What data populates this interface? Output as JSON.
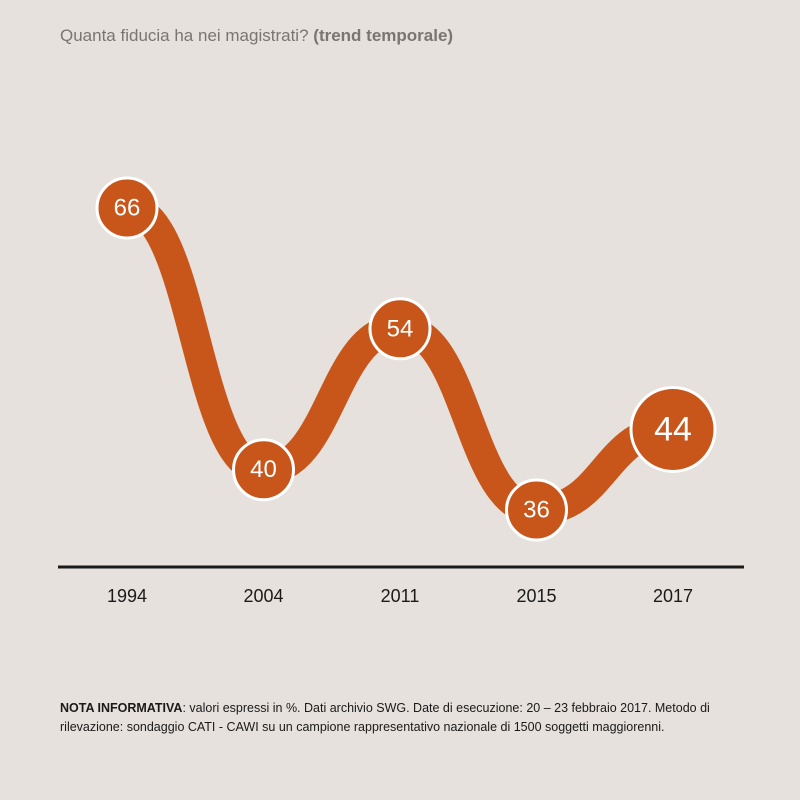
{
  "title": {
    "question": "Quanta fiducia ha nei magistrati?",
    "qualifier": "(trend temporale)"
  },
  "colors": {
    "background": "#e6e1dd",
    "line": "#c8561b",
    "marker_border": "#ffffff",
    "axis": "#1a1a1a",
    "title": "#7a7570"
  },
  "chart_data": {
    "type": "line",
    "title": "Quanta fiducia ha nei magistrati? (trend temporale)",
    "xlabel": "",
    "ylabel": "",
    "grid": false,
    "categories": [
      "1994",
      "2004",
      "2011",
      "2015",
      "2017"
    ],
    "series": [
      {
        "values": [
          66,
          40,
          54,
          36,
          44
        ]
      }
    ],
    "highlight_last": true
  },
  "note": {
    "label": "NOTA INFORMATIVA",
    "text": ": valori espressi in %. Dati archivio SWG. Date di esecuzione: 20 – 23 febbraio 2017. Metodo di rilevazione: sondaggio CATI - CAWI su un campione rappresentativo nazionale di 1500 soggetti maggiorenni."
  }
}
